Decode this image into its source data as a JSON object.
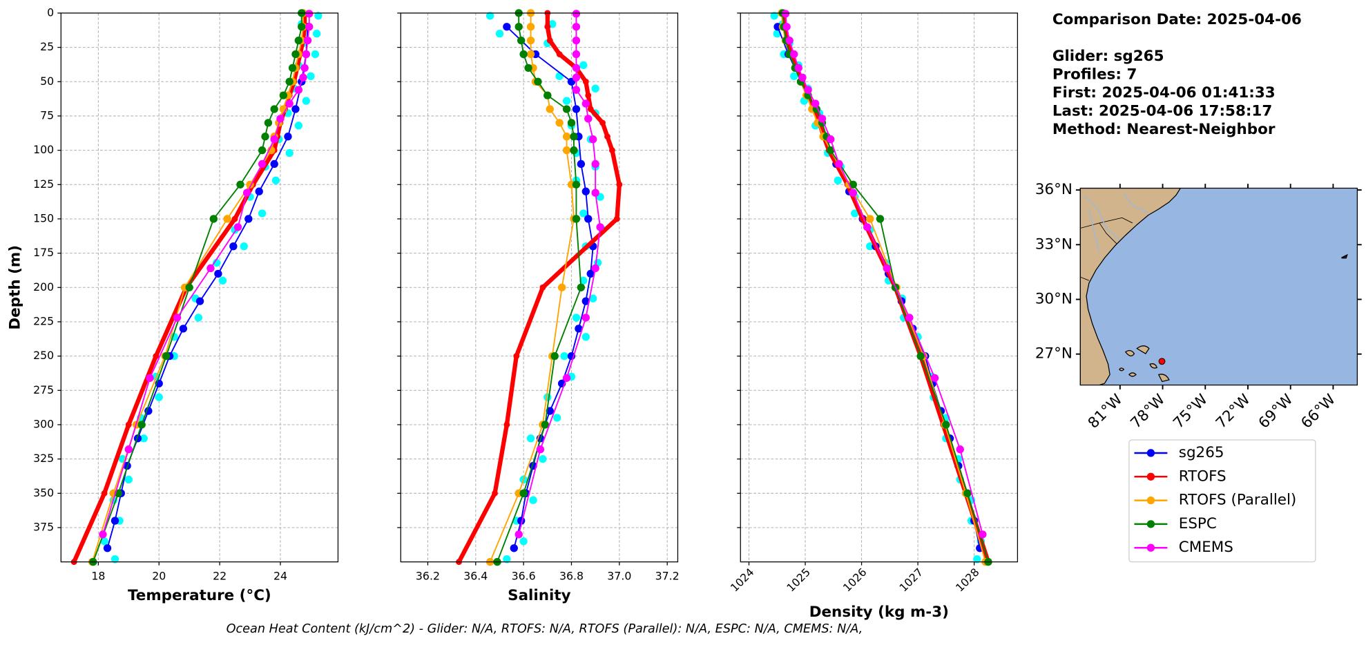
{
  "info": {
    "comparison": "Comparison Date: 2025-04-06",
    "glider": "Glider: sg265",
    "profiles": "Profiles: 7",
    "first": "First: 2025-04-06 01:41:33",
    "last": "Last: 2025-04-06 17:58:17",
    "method": "Method: Nearest-Neighbor"
  },
  "footer": "Ocean Heat Content (kJ/cm^2) - Glider: N/A,  RTOFS: N/A,  RTOFS (Parallel): N/A,  ESPC: N/A,  CMEMS: N/A,",
  "map": {
    "xlim": [
      -83.8,
      -64.3
    ],
    "ylim": [
      25.3,
      36.1
    ],
    "xticks": [
      {
        "value": -81,
        "label": "81°W"
      },
      {
        "value": -78,
        "label": "78°W"
      },
      {
        "value": -75,
        "label": "75°W"
      },
      {
        "value": -72,
        "label": "72°W"
      },
      {
        "value": -69,
        "label": "69°W"
      },
      {
        "value": -66,
        "label": "66°W"
      }
    ],
    "yticks": [
      {
        "value": 36,
        "label": "36°N"
      },
      {
        "value": 33,
        "label": "33°N"
      },
      {
        "value": 30,
        "label": "30°N"
      },
      {
        "value": 27,
        "label": "27°N"
      }
    ],
    "marker": {
      "lon": -78.05,
      "lat": 26.6,
      "color": "#ff0000"
    }
  },
  "chart_data": [
    {
      "type": "line",
      "xlabel": "Temperature (°C)",
      "ylabel": "Depth (m)",
      "xlim": [
        16.77,
        25.9
      ],
      "ylim": [
        400,
        0
      ],
      "xticks": [
        18,
        20,
        22,
        24
      ],
      "yticks": [
        0,
        25,
        50,
        75,
        100,
        125,
        150,
        175,
        200,
        225,
        250,
        275,
        300,
        325,
        350,
        375
      ],
      "ytick_labels": true,
      "grid": true,
      "raw": {
        "color": "#00ffff",
        "depth": [
          2,
          8,
          15,
          22,
          30,
          38,
          46,
          55,
          64,
          73,
          82,
          92,
          102,
          112,
          122,
          134,
          146,
          158,
          170,
          182,
          195,
          208,
          222,
          236,
          250,
          265,
          280,
          295,
          310,
          325,
          340,
          355,
          370,
          385,
          398
        ],
        "values": [
          25.25,
          24.7,
          25.2,
          24.75,
          25.15,
          24.6,
          25.0,
          24.45,
          24.85,
          24.25,
          24.6,
          23.95,
          24.3,
          23.5,
          23.85,
          23.0,
          23.4,
          22.5,
          22.8,
          21.9,
          22.1,
          21.2,
          21.3,
          20.5,
          20.5,
          19.9,
          20.0,
          19.4,
          19.5,
          18.8,
          19.0,
          18.5,
          18.7,
          18.2,
          18.55
        ]
      },
      "series": [
        {
          "name": "sg265",
          "color": "#0000ff",
          "linewidth": 1.5,
          "depth": [
            10,
            30,
            50,
            70,
            90,
            110,
            130,
            150,
            170,
            190,
            210,
            230,
            250,
            270,
            290,
            310,
            330,
            350,
            370,
            390
          ],
          "values": [
            24.9,
            24.85,
            24.7,
            24.5,
            24.25,
            23.8,
            23.3,
            22.95,
            22.45,
            21.95,
            21.35,
            20.8,
            20.35,
            20.0,
            19.65,
            19.3,
            18.95,
            18.75,
            18.55,
            18.3
          ]
        },
        {
          "name": "RTOFS",
          "color": "#ff0000",
          "linewidth": 5,
          "depth": [
            0,
            10,
            20,
            30,
            40,
            50,
            60,
            70,
            80,
            90,
            100,
            125,
            150,
            200,
            250,
            300,
            350,
            400
          ],
          "values": [
            24.8,
            24.8,
            24.75,
            24.65,
            24.55,
            24.45,
            24.3,
            24.15,
            24.0,
            23.9,
            23.8,
            23.1,
            22.5,
            20.9,
            19.9,
            19.0,
            18.2,
            17.2
          ]
        },
        {
          "name": "RTOFS (Parallel)",
          "color": "#ffa500",
          "linewidth": 1.5,
          "depth": [
            0,
            10,
            20,
            30,
            40,
            50,
            60,
            70,
            80,
            90,
            100,
            125,
            150,
            200,
            250,
            300,
            350,
            400
          ],
          "values": [
            24.75,
            24.75,
            24.7,
            24.6,
            24.5,
            24.4,
            24.25,
            24.1,
            23.95,
            23.8,
            23.7,
            23.0,
            22.25,
            20.85,
            20.2,
            19.26,
            18.5,
            17.8
          ]
        },
        {
          "name": "ESPC",
          "color": "#008000",
          "linewidth": 1.5,
          "depth": [
            0,
            10,
            20,
            30,
            40,
            50,
            60,
            70,
            80,
            90,
            100,
            125,
            150,
            200,
            250,
            300,
            350,
            400
          ],
          "values": [
            24.7,
            24.7,
            24.6,
            24.5,
            24.4,
            24.3,
            24.1,
            23.8,
            23.6,
            23.5,
            23.4,
            22.68,
            21.8,
            21.0,
            20.24,
            19.43,
            18.66,
            17.83
          ]
        },
        {
          "name": "CMEMS",
          "color": "#ff00ff",
          "linewidth": 1.5,
          "depth": [
            0.5,
            10,
            20,
            30,
            40,
            47,
            56,
            66,
            77,
            92,
            110,
            131,
            156,
            186,
            222,
            266,
            318,
            380
          ],
          "values": [
            24.95,
            24.95,
            24.9,
            24.85,
            24.8,
            24.75,
            24.6,
            24.3,
            24.0,
            23.8,
            23.4,
            22.9,
            22.6,
            21.7,
            20.6,
            19.7,
            19.0,
            18.15
          ]
        }
      ]
    },
    {
      "type": "line",
      "xlabel": "Salinity",
      "xlim": [
        36.087,
        37.244
      ],
      "ylim": [
        400,
        0
      ],
      "xticks": [
        36.2,
        36.4,
        36.6,
        36.8,
        {
          "value": 37,
          "label": "37.0"
        },
        37.2
      ],
      "yticks": [
        0,
        25,
        50,
        75,
        100,
        125,
        150,
        175,
        200,
        225,
        250,
        275,
        300,
        325,
        350,
        375
      ],
      "ytick_labels": false,
      "grid": true,
      "raw": {
        "color": "#00ffff",
        "depth": [
          2,
          8,
          15,
          22,
          30,
          38,
          46,
          55,
          64,
          73,
          82,
          92,
          102,
          112,
          122,
          134,
          146,
          158,
          170,
          182,
          195,
          208,
          222,
          236,
          250,
          265,
          280,
          295,
          310,
          325,
          340,
          355,
          370,
          385,
          398
        ],
        "values": [
          36.46,
          36.72,
          36.5,
          36.7,
          36.6,
          36.85,
          36.75,
          36.9,
          36.78,
          36.9,
          36.8,
          36.88,
          36.82,
          36.9,
          36.82,
          36.92,
          36.85,
          36.93,
          36.86,
          36.91,
          36.85,
          36.89,
          36.82,
          36.86,
          36.77,
          36.8,
          36.7,
          36.74,
          36.63,
          36.68,
          36.6,
          36.64,
          36.57,
          36.6,
          36.53
        ]
      },
      "series": [
        {
          "name": "sg265",
          "color": "#0000ff",
          "linewidth": 1.5,
          "depth": [
            10,
            30,
            50,
            70,
            90,
            110,
            130,
            150,
            170,
            190,
            210,
            230,
            250,
            270,
            290,
            310,
            330,
            350,
            370,
            390
          ],
          "values": [
            36.53,
            36.65,
            36.8,
            36.82,
            36.83,
            36.84,
            36.86,
            36.87,
            36.89,
            36.88,
            36.86,
            36.83,
            36.8,
            36.76,
            36.71,
            36.67,
            36.64,
            36.61,
            36.59,
            36.56
          ]
        },
        {
          "name": "RTOFS",
          "color": "#ff0000",
          "linewidth": 5,
          "depth": [
            0,
            10,
            20,
            30,
            40,
            50,
            60,
            70,
            80,
            90,
            100,
            125,
            150,
            200,
            250,
            300,
            350,
            400
          ],
          "values": [
            36.7,
            36.7,
            36.71,
            36.75,
            36.82,
            36.86,
            36.87,
            36.88,
            36.93,
            36.95,
            36.97,
            37.0,
            36.99,
            36.68,
            36.57,
            36.53,
            36.48,
            36.33
          ]
        },
        {
          "name": "RTOFS (Parallel)",
          "color": "#ffa500",
          "linewidth": 1.5,
          "depth": [
            0,
            10,
            20,
            30,
            40,
            50,
            60,
            70,
            80,
            90,
            100,
            125,
            150,
            200,
            250,
            300,
            350,
            400
          ],
          "values": [
            36.63,
            36.63,
            36.63,
            36.63,
            36.64,
            36.65,
            36.7,
            36.71,
            36.75,
            36.78,
            36.78,
            36.8,
            36.81,
            36.76,
            36.72,
            36.68,
            36.58,
            36.46
          ]
        },
        {
          "name": "ESPC",
          "color": "#008000",
          "linewidth": 1.5,
          "depth": [
            0,
            10,
            20,
            30,
            40,
            50,
            60,
            70,
            80,
            90,
            100,
            125,
            150,
            200,
            250,
            300,
            350,
            400
          ],
          "values": [
            36.58,
            36.58,
            36.59,
            36.6,
            36.62,
            36.66,
            36.7,
            36.78,
            36.8,
            36.81,
            36.81,
            36.82,
            36.82,
            36.84,
            36.73,
            36.69,
            36.6,
            36.49
          ]
        },
        {
          "name": "CMEMS",
          "color": "#ff00ff",
          "linewidth": 1.5,
          "depth": [
            0.5,
            10,
            20,
            30,
            40,
            47,
            56,
            66,
            77,
            92,
            110,
            131,
            156,
            186,
            222,
            266,
            318,
            380
          ],
          "values": [
            36.82,
            36.82,
            36.82,
            36.82,
            36.82,
            36.82,
            36.82,
            36.86,
            36.87,
            36.89,
            36.9,
            36.9,
            36.92,
            36.9,
            36.86,
            36.78,
            36.67,
            36.58
          ]
        }
      ]
    },
    {
      "type": "line",
      "xlabel": "Density (kg m-3)",
      "xlim": [
        1023.85,
        1028.77
      ],
      "ylim": [
        400,
        0
      ],
      "xticks": [
        1024,
        1025,
        1026,
        1027,
        1028
      ],
      "xtick_rotation": 45,
      "yticks": [
        0,
        25,
        50,
        75,
        100,
        125,
        150,
        175,
        200,
        225,
        250,
        275,
        300,
        325,
        350,
        375
      ],
      "ytick_labels": false,
      "grid": true,
      "raw": {
        "color": "#00ffff",
        "depth": [
          2,
          8,
          15,
          22,
          30,
          38,
          46,
          55,
          64,
          73,
          82,
          92,
          102,
          112,
          122,
          134,
          146,
          158,
          170,
          182,
          195,
          208,
          222,
          236,
          250,
          265,
          280,
          295,
          310,
          325,
          340,
          355,
          370,
          385,
          398
        ],
        "values": [
          1024.45,
          1024.6,
          1024.5,
          1024.72,
          1024.62,
          1024.88,
          1024.8,
          1025.05,
          1024.98,
          1025.25,
          1025.18,
          1025.45,
          1025.4,
          1025.63,
          1025.58,
          1025.88,
          1025.88,
          1026.15,
          1026.15,
          1026.42,
          1026.48,
          1026.72,
          1026.75,
          1027.0,
          1027.05,
          1027.25,
          1027.28,
          1027.5,
          1027.5,
          1027.72,
          1027.75,
          1027.95,
          1027.95,
          1028.12,
          1028.05
        ]
      },
      "series": [
        {
          "name": "sg265",
          "color": "#0000ff",
          "linewidth": 1.5,
          "depth": [
            10,
            30,
            50,
            70,
            90,
            110,
            130,
            150,
            170,
            190,
            210,
            230,
            250,
            270,
            290,
            310,
            330,
            350,
            370,
            390
          ],
          "values": [
            1024.51,
            1024.7,
            1024.93,
            1025.16,
            1025.36,
            1025.55,
            1025.78,
            1026.02,
            1026.25,
            1026.48,
            1026.71,
            1026.91,
            1027.13,
            1027.26,
            1027.41,
            1027.57,
            1027.72,
            1027.88,
            1028.0,
            1028.1
          ]
        },
        {
          "name": "RTOFS",
          "color": "#ff0000",
          "linewidth": 5,
          "depth": [
            0,
            10,
            20,
            30,
            40,
            50,
            60,
            70,
            80,
            90,
            100,
            125,
            150,
            200,
            250,
            300,
            350,
            400
          ],
          "values": [
            1024.62,
            1024.64,
            1024.67,
            1024.75,
            1024.85,
            1024.95,
            1025.05,
            1025.15,
            1025.25,
            1025.33,
            1025.42,
            1025.75,
            1026.02,
            1026.6,
            1027.05,
            1027.45,
            1027.85,
            1028.25
          ]
        },
        {
          "name": "RTOFS (Parallel)",
          "color": "#ffa500",
          "linewidth": 1.5,
          "depth": [
            0,
            10,
            20,
            30,
            40,
            50,
            60,
            70,
            80,
            90,
            100,
            125,
            150,
            200,
            250,
            300,
            350,
            400
          ],
          "values": [
            1024.58,
            1024.6,
            1024.65,
            1024.72,
            1024.82,
            1024.92,
            1025.02,
            1025.12,
            1025.22,
            1025.32,
            1025.45,
            1025.78,
            1026.15,
            1026.62,
            1027.1,
            1027.48,
            1027.85,
            1028.2
          ]
        },
        {
          "name": "ESPC",
          "color": "#008000",
          "linewidth": 1.5,
          "depth": [
            0,
            10,
            20,
            30,
            40,
            50,
            60,
            70,
            80,
            90,
            100,
            125,
            150,
            200,
            250,
            300,
            350,
            400
          ],
          "values": [
            1024.6,
            1024.62,
            1024.66,
            1024.72,
            1024.82,
            1024.92,
            1025.05,
            1025.2,
            1025.3,
            1025.38,
            1025.45,
            1025.85,
            1026.33,
            1026.6,
            1027.05,
            1027.5,
            1027.88,
            1028.25
          ]
        },
        {
          "name": "CMEMS",
          "color": "#ff00ff",
          "linewidth": 1.5,
          "depth": [
            0.5,
            10,
            20,
            30,
            40,
            47,
            56,
            66,
            77,
            92,
            110,
            131,
            156,
            186,
            222,
            266,
            318,
            380
          ],
          "values": [
            1024.65,
            1024.67,
            1024.72,
            1024.8,
            1024.88,
            1024.95,
            1025.05,
            1025.18,
            1025.3,
            1025.45,
            1025.6,
            1025.85,
            1026.1,
            1026.45,
            1026.85,
            1027.3,
            1027.75,
            1028.15
          ]
        }
      ]
    }
  ]
}
